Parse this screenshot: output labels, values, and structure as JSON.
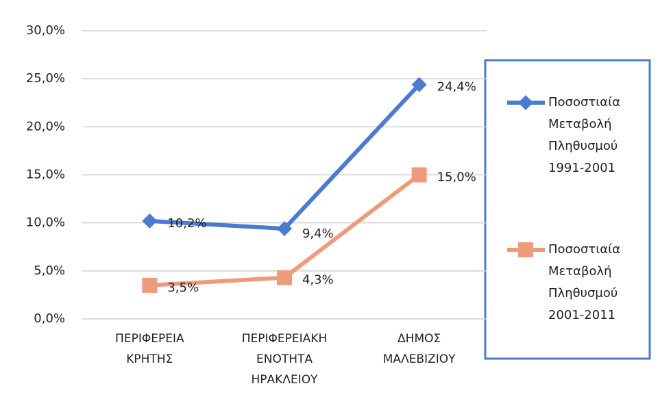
{
  "chart_data": {
    "type": "line",
    "categories": [
      "ΠΕΡΙΦΕΡΕΙΑ ΚΡΗΤΗΣ",
      "ΠΕΡΙΦΕΡΕΙΑΚΗ ΕΝΟΤΗΤΑ ΗΡΑΚΛΕΙΟΥ",
      "ΔΗΜΟΣ ΜΑΛΕΒΙΖΙΟΥ"
    ],
    "series": [
      {
        "name": "Ποσοστιαία Μεταβολή Πληθυσμού 1991-2001",
        "color": "#4a7bd0",
        "marker": "diamond",
        "values": [
          10.2,
          9.4,
          24.4
        ],
        "value_labels": [
          "10,2%",
          "9,4%",
          "24,4%"
        ]
      },
      {
        "name": "Ποσοστιαία Μεταβολή Πληθυσμού 2001-2011",
        "color": "#ee9b7c",
        "marker": "square",
        "values": [
          3.5,
          4.3,
          15.0
        ],
        "value_labels": [
          "3,5%",
          "4,3%",
          "15,0%"
        ]
      }
    ],
    "ylim": [
      0,
      30
    ],
    "yticks": [
      {
        "value": 0,
        "label": "0,0%"
      },
      {
        "value": 5,
        "label": "5,0%"
      },
      {
        "value": 10,
        "label": "10,0%"
      },
      {
        "value": 15,
        "label": "15,0%"
      },
      {
        "value": 20,
        "label": "20,0%"
      },
      {
        "value": 25,
        "label": "25,0%"
      },
      {
        "value": 30,
        "label": "30,0%"
      }
    ],
    "grid": true,
    "legend": "right"
  }
}
